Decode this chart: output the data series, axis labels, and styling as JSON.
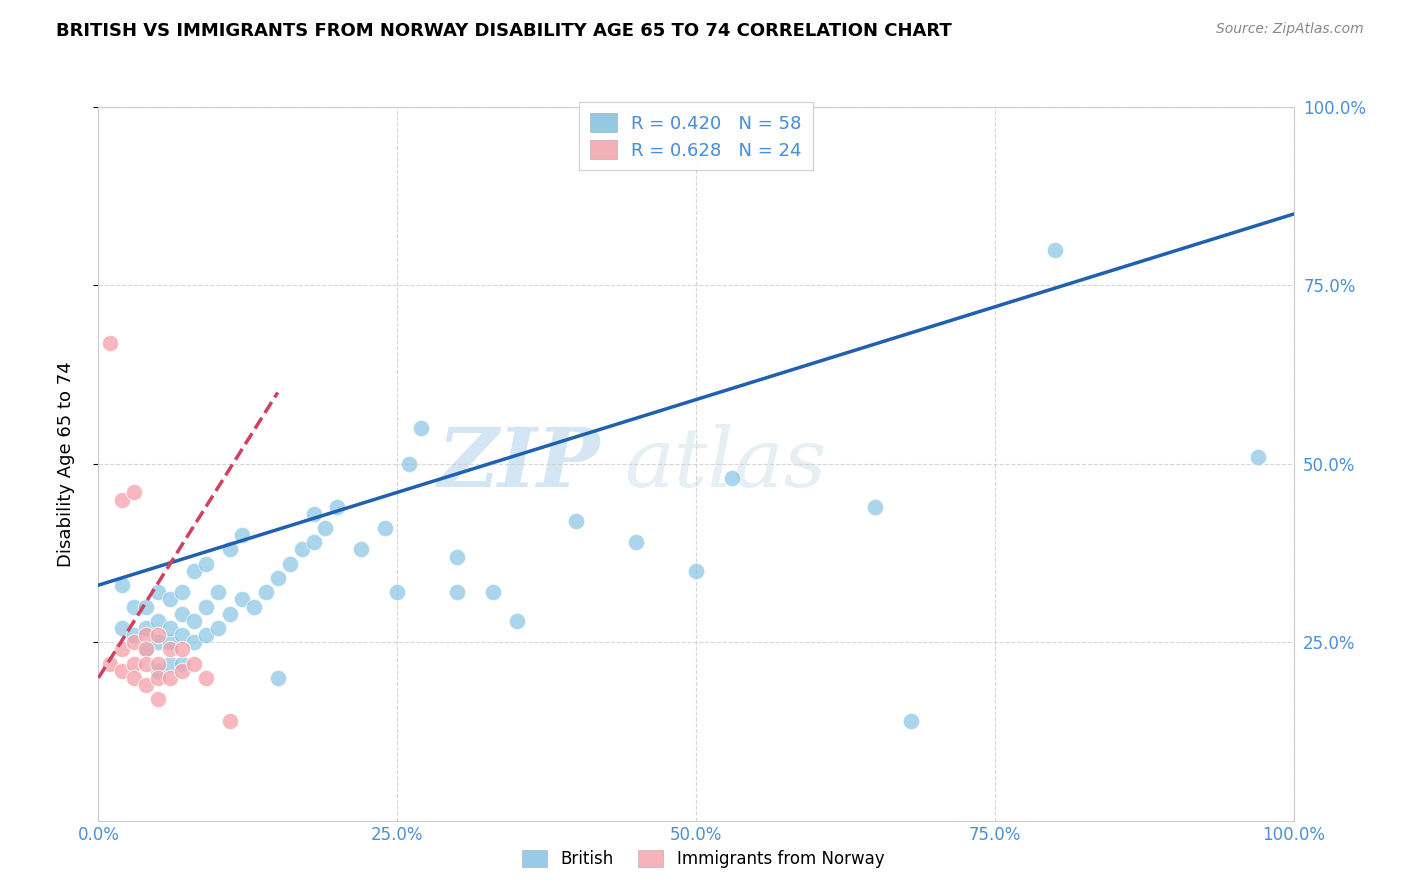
{
  "title": "BRITISH VS IMMIGRANTS FROM NORWAY DISABILITY AGE 65 TO 74 CORRELATION CHART",
  "source": "Source: ZipAtlas.com",
  "ylabel": "Disability Age 65 to 74",
  "xmin": 0.0,
  "xmax": 1.0,
  "ymin": 0.0,
  "ymax": 1.0,
  "xtick_vals": [
    0.0,
    0.25,
    0.5,
    0.75,
    1.0
  ],
  "ytick_vals": [
    0.25,
    0.5,
    0.75,
    1.0
  ],
  "british_color": "#7fbfdf",
  "norway_color": "#f4a0a8",
  "trendline_british_color": "#2060b0",
  "trendline_norway_color": "#d04060",
  "british_R": 0.42,
  "british_N": 58,
  "norway_R": 0.628,
  "norway_N": 24,
  "watermark_zip": "ZIP",
  "watermark_atlas": "atlas",
  "british_scatter_x": [
    0.02,
    0.02,
    0.03,
    0.03,
    0.04,
    0.04,
    0.04,
    0.05,
    0.05,
    0.05,
    0.05,
    0.06,
    0.06,
    0.06,
    0.06,
    0.07,
    0.07,
    0.07,
    0.07,
    0.08,
    0.08,
    0.08,
    0.09,
    0.09,
    0.09,
    0.1,
    0.1,
    0.11,
    0.11,
    0.12,
    0.12,
    0.13,
    0.14,
    0.15,
    0.15,
    0.16,
    0.17,
    0.18,
    0.18,
    0.19,
    0.2,
    0.22,
    0.24,
    0.25,
    0.26,
    0.27,
    0.3,
    0.3,
    0.33,
    0.35,
    0.4,
    0.45,
    0.5,
    0.53,
    0.65,
    0.68,
    0.8,
    0.97
  ],
  "british_scatter_y": [
    0.27,
    0.33,
    0.26,
    0.3,
    0.24,
    0.27,
    0.3,
    0.21,
    0.25,
    0.28,
    0.32,
    0.22,
    0.25,
    0.27,
    0.31,
    0.22,
    0.26,
    0.29,
    0.32,
    0.25,
    0.28,
    0.35,
    0.26,
    0.3,
    0.36,
    0.27,
    0.32,
    0.29,
    0.38,
    0.31,
    0.4,
    0.3,
    0.32,
    0.2,
    0.34,
    0.36,
    0.38,
    0.39,
    0.43,
    0.41,
    0.44,
    0.38,
    0.41,
    0.32,
    0.5,
    0.55,
    0.32,
    0.37,
    0.32,
    0.28,
    0.42,
    0.39,
    0.35,
    0.48,
    0.44,
    0.14,
    0.8,
    0.51
  ],
  "norway_scatter_x": [
    0.01,
    0.01,
    0.02,
    0.02,
    0.02,
    0.03,
    0.03,
    0.03,
    0.03,
    0.04,
    0.04,
    0.04,
    0.04,
    0.05,
    0.05,
    0.05,
    0.05,
    0.06,
    0.06,
    0.07,
    0.07,
    0.08,
    0.09,
    0.11
  ],
  "norway_scatter_y": [
    0.67,
    0.22,
    0.45,
    0.24,
    0.21,
    0.46,
    0.25,
    0.22,
    0.2,
    0.26,
    0.24,
    0.22,
    0.19,
    0.26,
    0.22,
    0.2,
    0.17,
    0.24,
    0.2,
    0.24,
    0.21,
    0.22,
    0.2,
    0.14
  ],
  "brit_trendline_x0": 0.0,
  "brit_trendline_x1": 1.0,
  "brit_trendline_y0": 0.33,
  "brit_trendline_y1": 0.85,
  "norw_trendline_x0": 0.0,
  "norw_trendline_x1": 0.15,
  "norw_trendline_y0": 0.2,
  "norw_trendline_y1": 0.6
}
